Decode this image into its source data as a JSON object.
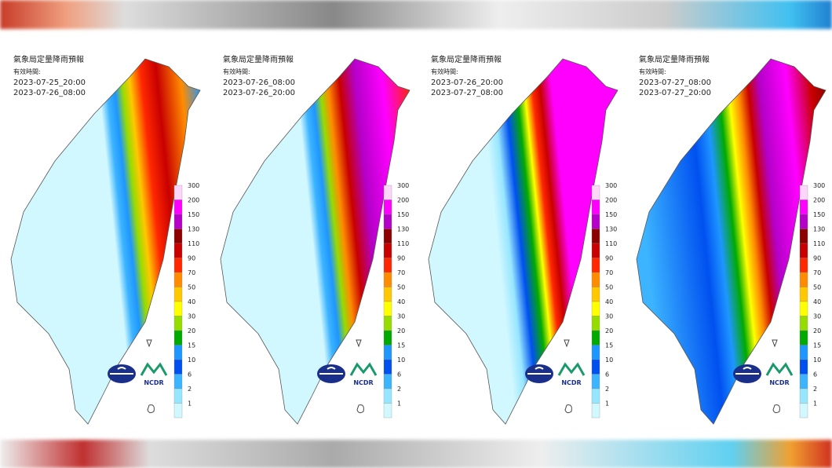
{
  "panels": [
    {
      "title": "氣象局定量降雨預報",
      "valid_label": "有效時間:",
      "start": "2023-07-25_20:00",
      "end": "2023-07-26_08:00"
    },
    {
      "title": "氣象局定量降雨預報",
      "valid_label": "有效時間:",
      "start": "2023-07-26_08:00",
      "end": "2023-07-26_20:00"
    },
    {
      "title": "氣象局定量降雨預報",
      "valid_label": "有效時間:",
      "start": "2023-07-26_20:00",
      "end": "2023-07-27_08:00"
    },
    {
      "title": "氣象局定量降雨預報",
      "valid_label": "有效時間:",
      "start": "2023-07-27_08:00",
      "end": "2023-07-27_20:00"
    }
  ],
  "legend": {
    "labels": [
      "300",
      "200",
      "150",
      "130",
      "110",
      "90",
      "70",
      "50",
      "40",
      "30",
      "20",
      "15",
      "10",
      "6",
      "2",
      "1"
    ],
    "colors": [
      "#fbd6f8",
      "#ff00ff",
      "#b400c8",
      "#8c0000",
      "#c80000",
      "#ff2800",
      "#ff8c00",
      "#ffc800",
      "#ffff00",
      "#96dc00",
      "#00aa00",
      "#1e96ff",
      "#0050f0",
      "#3cb4ff",
      "#96e6ff",
      "#d2f8ff"
    ]
  },
  "logo_text": "NCDR"
}
